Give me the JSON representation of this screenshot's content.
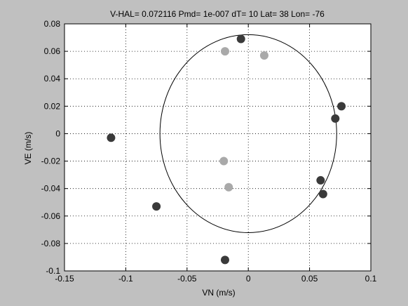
{
  "chart_data": {
    "type": "scatter",
    "title": "V-HAL= 0.072116 Pmd= 1e-007 dT= 10 Lat= 38 Lon= -76",
    "xlabel": "VN (m/s)",
    "ylabel": "VE (m/s)",
    "xlim": [
      -0.15,
      0.1
    ],
    "ylim": [
      -0.1,
      0.08
    ],
    "xticks": [
      -0.15,
      -0.1,
      -0.05,
      0,
      0.05,
      0.1
    ],
    "xtick_labels": [
      "-0.15",
      "-0.1",
      "-0.05",
      "0",
      "0.05",
      "0.1"
    ],
    "yticks": [
      -0.1,
      -0.08,
      -0.06,
      -0.04,
      -0.02,
      0,
      0.02,
      0.04,
      0.06,
      0.08
    ],
    "ytick_labels": [
      "-0.1",
      "-0.08",
      "-0.06",
      "-0.04",
      "-0.02",
      "0",
      "0.02",
      "0.04",
      "0.06",
      "0.08"
    ],
    "grid": true,
    "circle": {
      "center": [
        0,
        0
      ],
      "radius": 0.072116
    },
    "series": [
      {
        "color": "#3a3a3a",
        "points": [
          [
            -0.006,
            0.069
          ],
          [
            -0.112,
            -0.003
          ],
          [
            -0.075,
            -0.053
          ],
          [
            -0.019,
            -0.092
          ],
          [
            0.059,
            -0.034
          ],
          [
            0.061,
            -0.044
          ],
          [
            0.071,
            0.011
          ],
          [
            0.076,
            0.02
          ]
        ]
      },
      {
        "color": "#a9a9a9",
        "points": [
          [
            -0.019,
            0.06
          ],
          [
            0.013,
            0.057
          ],
          [
            -0.02,
            -0.02
          ],
          [
            -0.016,
            -0.039
          ]
        ]
      }
    ]
  },
  "colors": {
    "figure_bg": "#c0c0c0",
    "axes_bg": "#ffffff",
    "grid": "#000000"
  }
}
